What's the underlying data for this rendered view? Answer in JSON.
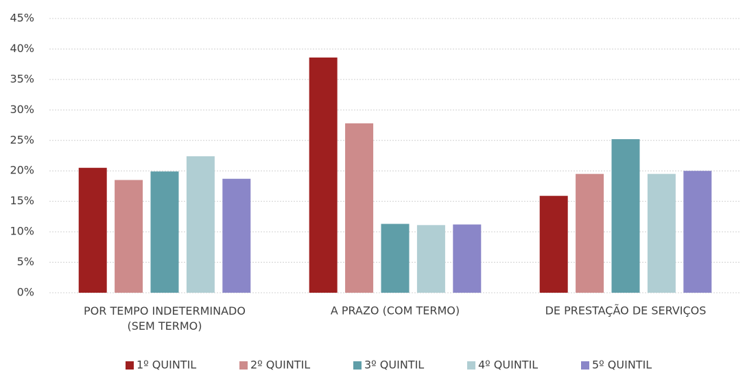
{
  "chart_data": {
    "type": "bar",
    "categories": [
      "POR TEMPO INDETERMINADO\n(SEM TERMO)",
      "A PRAZO (COM TERMO)",
      "DE PRESTAÇÃO DE SERVIÇOS"
    ],
    "series": [
      {
        "name": "1º QUINTIL",
        "color": "#9e1f1f",
        "values": [
          20.5,
          38.6,
          15.9
        ]
      },
      {
        "name": "2º QUINTIL",
        "color": "#cd8b8b",
        "values": [
          18.5,
          27.8,
          19.5
        ]
      },
      {
        "name": "3º QUINTIL",
        "color": "#5f9ea8",
        "values": [
          19.9,
          11.3,
          25.2
        ]
      },
      {
        "name": "4º QUINTIL",
        "color": "#b0ced3",
        "values": [
          22.4,
          11.1,
          19.5
        ]
      },
      {
        "name": "5º QUINTIL",
        "color": "#8a86c8",
        "values": [
          18.7,
          11.2,
          20.0
        ]
      }
    ],
    "ylim": [
      0,
      45
    ],
    "yticks": [
      {
        "value": 0,
        "label": "0%"
      },
      {
        "value": 5,
        "label": "5%"
      },
      {
        "value": 10,
        "label": "10%"
      },
      {
        "value": 15,
        "label": "15%"
      },
      {
        "value": 20,
        "label": "20%"
      },
      {
        "value": 25,
        "label": "25%"
      },
      {
        "value": 30,
        "label": "30%"
      },
      {
        "value": 35,
        "label": "35%"
      },
      {
        "value": 40,
        "label": "40%"
      },
      {
        "value": 45,
        "label": "45%"
      }
    ],
    "grid": true,
    "legend": "bottom"
  }
}
